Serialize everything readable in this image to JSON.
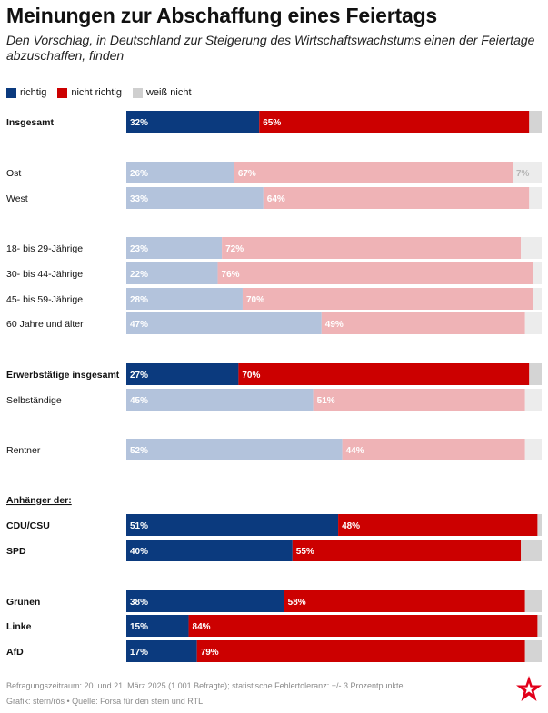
{
  "header": {
    "title": "Meinungen zur Abschaffung eines Feiertags",
    "subtitle": "Den Vorschlag, in Deutschland zur Steigerung des Wirtschaftswachstums einen der Feiertage abzuschaffen, finden"
  },
  "legend": {
    "items": [
      {
        "label": "richtig",
        "color": "#0b3a7e"
      },
      {
        "label": "nicht richtig",
        "color": "#cc0000"
      },
      {
        "label": "weiß nicht",
        "color": "#cfcfcf"
      }
    ]
  },
  "colors": {
    "strong": [
      "#0b3a7e",
      "#cc0000",
      "#d4d4d4"
    ],
    "light": [
      "#b3c3dc",
      "#efb3b6",
      "#ececec"
    ]
  },
  "chart_data": {
    "type": "bar",
    "orientation": "horizontal",
    "stacked": true,
    "series": [
      "richtig",
      "nicht richtig",
      "weiß nicht"
    ],
    "xlim": [
      0,
      100
    ],
    "group_label": "Anhänger der:",
    "rows": [
      {
        "label": "Insgesamt",
        "values": [
          32,
          65,
          3
        ],
        "bold": true,
        "shade": "strong",
        "labels": [
          "32%",
          "65%",
          ""
        ]
      },
      {
        "label": "Ost",
        "values": [
          26,
          67,
          7
        ],
        "bold": false,
        "shade": "light",
        "labels": [
          "26%",
          "67%",
          "7%"
        ]
      },
      {
        "label": "West",
        "values": [
          33,
          64,
          3
        ],
        "bold": false,
        "shade": "light",
        "labels": [
          "33%",
          "64%",
          ""
        ]
      },
      {
        "label": "18- bis 29-Jährige",
        "values": [
          23,
          72,
          5
        ],
        "bold": false,
        "shade": "light",
        "labels": [
          "23%",
          "72%",
          ""
        ]
      },
      {
        "label": "30- bis 44-Jährige",
        "values": [
          22,
          76,
          2
        ],
        "bold": false,
        "shade": "light",
        "labels": [
          "22%",
          "76%",
          ""
        ]
      },
      {
        "label": "45- bis 59-Jährige",
        "values": [
          28,
          70,
          2
        ],
        "bold": false,
        "shade": "light",
        "labels": [
          "28%",
          "70%",
          ""
        ]
      },
      {
        "label": "60 Jahre und älter",
        "values": [
          47,
          49,
          4
        ],
        "bold": false,
        "shade": "light",
        "labels": [
          "47%",
          "49%",
          ""
        ]
      },
      {
        "label": "Erwerbstätige insgesamt",
        "values": [
          27,
          70,
          3
        ],
        "bold": true,
        "shade": "strong",
        "labels": [
          "27%",
          "70%",
          ""
        ]
      },
      {
        "label": "Selbständige",
        "values": [
          45,
          51,
          4
        ],
        "bold": false,
        "shade": "light",
        "labels": [
          "45%",
          "51%",
          ""
        ]
      },
      {
        "label": "Rentner",
        "values": [
          52,
          44,
          4
        ],
        "bold": false,
        "shade": "light",
        "labels": [
          "52%",
          "44%",
          ""
        ]
      },
      {
        "label": "CDU/CSU",
        "values": [
          51,
          48,
          1
        ],
        "bold": true,
        "shade": "strong",
        "labels": [
          "51%",
          "48%",
          ""
        ]
      },
      {
        "label": "SPD",
        "values": [
          40,
          55,
          5
        ],
        "bold": true,
        "shade": "strong",
        "labels": [
          "40%",
          "55%",
          ""
        ]
      },
      {
        "label": "Grünen",
        "values": [
          38,
          58,
          4
        ],
        "bold": true,
        "shade": "strong",
        "labels": [
          "38%",
          "58%",
          ""
        ]
      },
      {
        "label": "Linke",
        "values": [
          15,
          84,
          1
        ],
        "bold": true,
        "shade": "strong",
        "labels": [
          "15%",
          "84%",
          ""
        ]
      },
      {
        "label": "AfD",
        "values": [
          17,
          79,
          4
        ],
        "bold": true,
        "shade": "strong",
        "labels": [
          "17%",
          "79%",
          ""
        ]
      }
    ]
  },
  "footer": {
    "line1": "Befragungszeitraum: 20. und 21. März 2025 (1.001 Befragte); statistische Fehlertoleranz: +/- 3 Prozentpunkte",
    "line2": "Grafik: stern/rös • Quelle: Forsa für den stern und RTL"
  }
}
